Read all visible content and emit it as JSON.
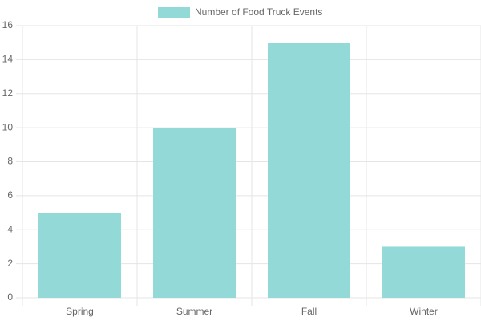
{
  "chart_data": {
    "type": "bar",
    "categories": [
      "Spring",
      "Summer",
      "Fall",
      "Winter"
    ],
    "series": [
      {
        "name": "Number of Food Truck Events",
        "color": "#93d9d8",
        "values": [
          5,
          10,
          15,
          3
        ]
      }
    ],
    "ylim": [
      0,
      16
    ],
    "yticks": [
      0,
      2,
      4,
      6,
      8,
      10,
      12,
      14,
      16
    ],
    "grid": true,
    "legend": "top"
  }
}
